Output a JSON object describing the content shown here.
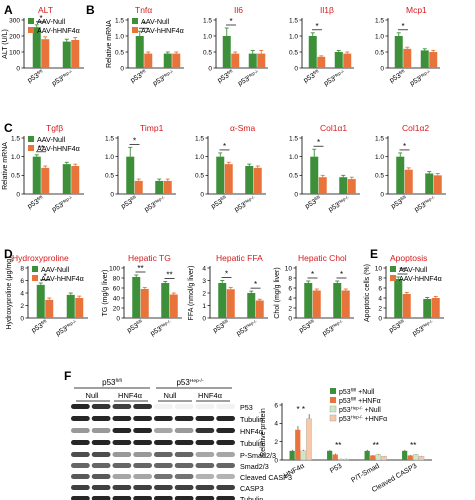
{
  "colors": {
    "null": "#3d8f3a",
    "hnf": "#e8743b",
    "title": "#d7191c",
    "axis": "#000000"
  },
  "panel_letters": [
    "A",
    "B",
    "C",
    "D",
    "E",
    "F"
  ],
  "groups": [
    "p53fl/fl",
    "p53Hep-/-"
  ],
  "group_parts": [
    [
      "p53",
      "fl/fl"
    ],
    [
      "p53",
      "Hep-/-"
    ]
  ],
  "legend": [
    "AAV-Null",
    "AAV-hHNF4α"
  ],
  "chart_data": [
    {
      "id": "A-alt",
      "type": "bar",
      "title": "ALT",
      "ylabel": "ALT (U/L)",
      "ylim": [
        0,
        300
      ],
      "yticks": [
        0,
        100,
        200,
        300
      ],
      "categories": [
        "p53fl/fl",
        "p53Hep-/-"
      ],
      "series": [
        {
          "name": "AAV-Null",
          "values": [
            255,
            165
          ],
          "errors": [
            15,
            15
          ]
        },
        {
          "name": "AAV-hHNF4α",
          "values": [
            180,
            175
          ],
          "errors": [
            15,
            15
          ]
        }
      ],
      "annotations": [
        "*",
        ""
      ],
      "legend": true
    },
    {
      "id": "B-tnfa",
      "type": "bar",
      "title": "Tnfα",
      "ylabel": "Relative mRNA",
      "ylim": [
        0,
        1.5
      ],
      "yticks": [
        0,
        0.5,
        1.0,
        1.5
      ],
      "categories": [
        "p53fl/fl",
        "p53Hep-/-"
      ],
      "series": [
        {
          "name": "AAV-Null",
          "values": [
            1.0,
            0.45
          ],
          "errors": [
            0.15,
            0.05
          ]
        },
        {
          "name": "AAV-hHNF4α",
          "values": [
            0.45,
            0.45
          ],
          "errors": [
            0.05,
            0.05
          ]
        }
      ],
      "annotations": [
        "*",
        ""
      ],
      "legend": true
    },
    {
      "id": "B-il6",
      "type": "bar",
      "title": "Il6",
      "ylabel": "",
      "ylim": [
        0,
        1.5
      ],
      "yticks": [
        0,
        0.5,
        1.0,
        1.5
      ],
      "categories": [
        "p53fl/fl",
        "p53Hep-/-"
      ],
      "series": [
        {
          "name": "AAV-Null",
          "values": [
            1.0,
            0.45
          ],
          "errors": [
            0.25,
            0.1
          ]
        },
        {
          "name": "AAV-hHNF4α",
          "values": [
            0.45,
            0.45
          ],
          "errors": [
            0.05,
            0.1
          ]
        }
      ],
      "annotations": [
        "*",
        ""
      ],
      "legend": false
    },
    {
      "id": "B-il1b",
      "type": "bar",
      "title": "Il1β",
      "ylabel": "",
      "ylim": [
        0,
        1.5
      ],
      "yticks": [
        0,
        0.5,
        1.0,
        1.5
      ],
      "categories": [
        "p53fl/fl",
        "p53Hep-/-"
      ],
      "series": [
        {
          "name": "AAV-Null",
          "values": [
            1.0,
            0.5
          ],
          "errors": [
            0.1,
            0.05
          ]
        },
        {
          "name": "AAV-hHNF4α",
          "values": [
            0.35,
            0.45
          ],
          "errors": [
            0.03,
            0.05
          ]
        }
      ],
      "annotations": [
        "*",
        ""
      ],
      "legend": false
    },
    {
      "id": "B-mcp1",
      "type": "bar",
      "title": "Mcp1",
      "ylabel": "",
      "ylim": [
        0,
        1.5
      ],
      "yticks": [
        0,
        0.5,
        1.0,
        1.5
      ],
      "categories": [
        "p53fl/fl",
        "p53Hep-/-"
      ],
      "series": [
        {
          "name": "AAV-Null",
          "values": [
            1.0,
            0.55
          ],
          "errors": [
            0.1,
            0.05
          ]
        },
        {
          "name": "AAV-hHNF4α",
          "values": [
            0.6,
            0.5
          ],
          "errors": [
            0.05,
            0.05
          ]
        }
      ],
      "annotations": [
        "*",
        ""
      ],
      "legend": false
    },
    {
      "id": "C-tgfb",
      "type": "bar",
      "title": "Tgfβ",
      "ylabel": "Relative mRNA",
      "ylim": [
        0,
        1.5
      ],
      "yticks": [
        0,
        0.5,
        1.0,
        1.5
      ],
      "categories": [
        "p53fl/fl",
        "p53Hep-/-"
      ],
      "series": [
        {
          "name": "AAV-Null",
          "values": [
            1.0,
            0.8
          ],
          "errors": [
            0.05,
            0.05
          ]
        },
        {
          "name": "AAV-hHNF4α",
          "values": [
            0.7,
            0.75
          ],
          "errors": [
            0.05,
            0.05
          ]
        }
      ],
      "annotations": [
        "**",
        ""
      ],
      "legend": true
    },
    {
      "id": "C-timp1",
      "type": "bar",
      "title": "Timp1",
      "ylabel": "",
      "ylim": [
        0,
        1.5
      ],
      "yticks": [
        0,
        0.5,
        1.0,
        1.5
      ],
      "categories": [
        "p53fl/fl",
        "p53Hep-/-"
      ],
      "series": [
        {
          "name": "AAV-Null",
          "values": [
            1.0,
            0.35
          ],
          "errors": [
            0.25,
            0.05
          ]
        },
        {
          "name": "AAV-hHNF4α",
          "values": [
            0.35,
            0.35
          ],
          "errors": [
            0.05,
            0.05
          ]
        }
      ],
      "annotations": [
        "*",
        ""
      ],
      "legend": false
    },
    {
      "id": "C-asma",
      "type": "bar",
      "title": "α-Sma",
      "ylabel": "",
      "ylim": [
        0,
        1.5
      ],
      "yticks": [
        0,
        0.5,
        1.0,
        1.5
      ],
      "categories": [
        "p53fl/fl",
        "p53Hep-/-"
      ],
      "series": [
        {
          "name": "AAV-Null",
          "values": [
            1.0,
            0.75
          ],
          "errors": [
            0.1,
            0.05
          ]
        },
        {
          "name": "AAV-hHNF4α",
          "values": [
            0.8,
            0.7
          ],
          "errors": [
            0.05,
            0.05
          ]
        }
      ],
      "annotations": [
        "*",
        ""
      ],
      "legend": false
    },
    {
      "id": "C-col1a1",
      "type": "bar",
      "title": "Col1α1",
      "ylabel": "",
      "ylim": [
        0,
        1.5
      ],
      "yticks": [
        0,
        0.5,
        1.0,
        1.5
      ],
      "categories": [
        "p53fl/fl",
        "p53Hep-/-"
      ],
      "series": [
        {
          "name": "AAV-Null",
          "values": [
            1.0,
            0.45
          ],
          "errors": [
            0.2,
            0.05
          ]
        },
        {
          "name": "AAV-hHNF4α",
          "values": [
            0.45,
            0.4
          ],
          "errors": [
            0.05,
            0.05
          ]
        }
      ],
      "annotations": [
        "*",
        ""
      ],
      "legend": false
    },
    {
      "id": "C-col1a2",
      "type": "bar",
      "title": "Col1α2",
      "ylabel": "",
      "ylim": [
        0,
        1.5
      ],
      "yticks": [
        0,
        0.5,
        1.0,
        1.5
      ],
      "categories": [
        "p53fl/fl",
        "p53Hep-/-"
      ],
      "series": [
        {
          "name": "AAV-Null",
          "values": [
            1.0,
            0.55
          ],
          "errors": [
            0.1,
            0.05
          ]
        },
        {
          "name": "AAV-hHNF4α",
          "values": [
            0.65,
            0.5
          ],
          "errors": [
            0.05,
            0.05
          ]
        }
      ],
      "annotations": [
        "*",
        ""
      ],
      "legend": false
    },
    {
      "id": "D-hyp",
      "type": "bar",
      "title": "Hydroxyproline",
      "ylabel": "Hydroxyproline (μg/mg)",
      "ylim": [
        0,
        8
      ],
      "yticks": [
        0,
        2,
        4,
        6,
        8
      ],
      "categories": [
        "p53fl/fl",
        "p53Hep-/-"
      ],
      "series": [
        {
          "name": "AAV-Null",
          "values": [
            5.3,
            3.7
          ],
          "errors": [
            0.3,
            0.3
          ]
        },
        {
          "name": "AAV-hHNF4α",
          "values": [
            2.9,
            3.2
          ],
          "errors": [
            0.3,
            0.3
          ]
        }
      ],
      "annotations": [
        "*",
        ""
      ],
      "legend": true
    },
    {
      "id": "D-tg",
      "type": "bar",
      "title": "Hepatic TG",
      "ylabel": "TG (mg/g liver)",
      "ylim": [
        0,
        100
      ],
      "yticks": [
        0,
        20,
        40,
        60,
        80,
        100
      ],
      "categories": [
        "p53fl/fl",
        "p53Hep-/-"
      ],
      "series": [
        {
          "name": "AAV-Null",
          "values": [
            82,
            70
          ],
          "errors": [
            4,
            3
          ]
        },
        {
          "name": "AAV-hHNF4α",
          "values": [
            58,
            47
          ],
          "errors": [
            3,
            3
          ]
        }
      ],
      "annotations": [
        "**",
        "**"
      ],
      "legend": false
    },
    {
      "id": "D-ffa",
      "type": "bar",
      "title": "Hepatic FFA",
      "ylabel": "FFA (nmol/g liver)",
      "ylim": [
        0,
        4
      ],
      "yticks": [
        0,
        1,
        2,
        3,
        4
      ],
      "categories": [
        "p53fl/fl",
        "p53Hep-/-"
      ],
      "series": [
        {
          "name": "AAV-Null",
          "values": [
            2.8,
            2.0
          ],
          "errors": [
            0.2,
            0.15
          ]
        },
        {
          "name": "AAV-hHNF4α",
          "values": [
            2.3,
            1.4
          ],
          "errors": [
            0.15,
            0.1
          ]
        }
      ],
      "annotations": [
        "*",
        "*"
      ],
      "legend": false
    },
    {
      "id": "D-chol",
      "type": "bar",
      "title": "Hepatic Chol",
      "ylabel": "Chol (mg/g liver)",
      "ylim": [
        0,
        10
      ],
      "yticks": [
        0,
        2,
        4,
        6,
        8,
        10
      ],
      "categories": [
        "p53fl/fl",
        "p53Hep-/-"
      ],
      "series": [
        {
          "name": "AAV-Null",
          "values": [
            7.0,
            7.0
          ],
          "errors": [
            0.4,
            0.4
          ]
        },
        {
          "name": "AAV-hHNF4α",
          "values": [
            5.5,
            5.5
          ],
          "errors": [
            0.3,
            0.3
          ]
        }
      ],
      "annotations": [
        "*",
        "*"
      ],
      "legend": false
    },
    {
      "id": "E-apop",
      "type": "bar",
      "title": "Apoptosis",
      "ylabel": "Apoptotic cells (%)",
      "ylim": [
        0,
        10
      ],
      "yticks": [
        0,
        2,
        4,
        6,
        8,
        10
      ],
      "categories": [
        "p53fl/fl",
        "p53Hep-/-"
      ],
      "series": [
        {
          "name": "AAV-Null",
          "values": [
            7.8,
            3.8
          ],
          "errors": [
            0.4,
            0.3
          ]
        },
        {
          "name": "AAV-hHNF4α",
          "values": [
            4.8,
            4.0
          ],
          "errors": [
            0.3,
            0.3
          ]
        }
      ],
      "annotations": [
        "**",
        ""
      ],
      "legend": true
    },
    {
      "id": "F-quant",
      "type": "bar",
      "title": "",
      "ylabel": "Relative protein",
      "ylim": [
        0,
        6
      ],
      "yticks": [
        0,
        2,
        4,
        6
      ],
      "categories": [
        "HNF4α",
        "P53",
        "P/T-Smad",
        "Cleaved CASP3"
      ],
      "series": [
        {
          "name": "p53fl/fl +Null",
          "values": [
            1.0,
            1.0,
            1.0,
            1.0
          ],
          "errors": [
            0.1,
            0.1,
            0.1,
            0.1
          ]
        },
        {
          "name": "p53fl/fl +HNFα",
          "values": [
            3.3,
            0.6,
            0.5,
            0.5
          ],
          "errors": [
            0.4,
            0.1,
            0.05,
            0.05
          ]
        },
        {
          "name": "p53Hep-/- +Null",
          "values": [
            1.0,
            0.1,
            0.6,
            0.6
          ],
          "errors": [
            0.1,
            0.05,
            0.05,
            0.05
          ]
        },
        {
          "name": "p53Hep-/- +HNFα",
          "values": [
            4.5,
            0.1,
            0.4,
            0.4
          ],
          "errors": [
            0.5,
            0.05,
            0.05,
            0.05
          ]
        }
      ],
      "annotations": [
        "* *",
        "**",
        "**",
        "**"
      ],
      "legend": true
    }
  ],
  "blot": {
    "header_groups": [
      "p53fl/fl",
      "p53Hep-/-"
    ],
    "header_parts": [
      [
        "p53",
        "fl/fl"
      ],
      [
        "p53",
        "Hep-/-"
      ]
    ],
    "subheaders": [
      "Null",
      "HNF4α"
    ],
    "rows": [
      "P53",
      "Tubulin",
      "HNF4α",
      "Tubulin",
      "P-Smad2/3",
      "Smad2/3",
      "Cleaved CASP3",
      "CASP3",
      "Tubulin"
    ]
  },
  "f_legend": [
    {
      "parts": [
        "p53",
        "fl/fl",
        " +Null"
      ]
    },
    {
      "parts": [
        "p53",
        "fl/fl",
        " +HNFα"
      ]
    },
    {
      "parts": [
        "p53",
        "Hep-/-",
        " +Null"
      ]
    },
    {
      "parts": [
        "p53",
        "Hep-/-",
        " +HNFα"
      ]
    }
  ],
  "f_colors": [
    "#3d8f3a",
    "#e8743b",
    "#cfe6c4",
    "#f7c9a8"
  ]
}
